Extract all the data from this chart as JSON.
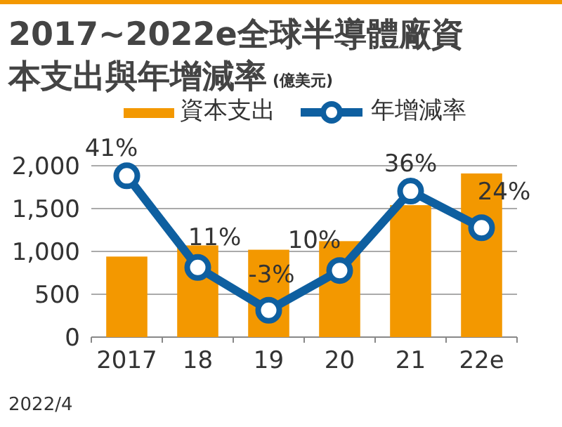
{
  "chart_data": {
    "type": "bar",
    "title": "2017~2022e全球半導體廠資本支出與年增減率",
    "subtitle": "(億美元)",
    "categories": [
      "2017",
      "18",
      "19",
      "20",
      "21",
      "22e"
    ],
    "series": [
      {
        "name": "資本支出",
        "color": "#f39800",
        "values": [
          940,
          1070,
          1020,
          1120,
          1540,
          1910
        ]
      },
      {
        "name": "年增減率",
        "type": "line",
        "axis": "y2",
        "color": "#0e5fa0",
        "marker": "circle",
        "values": [
          41,
          11,
          -3,
          10,
          36,
          24
        ],
        "value_labels": [
          "41%",
          "11%",
          "-3%",
          "10%",
          "36%",
          "24%"
        ]
      }
    ],
    "ylim": [
      0,
      2000
    ],
    "yticks": [
      {
        "value": 0,
        "label": "0"
      },
      {
        "value": 500,
        "label": "500"
      },
      {
        "value": 1000,
        "label": "1,000"
      },
      {
        "value": 1500,
        "label": "1,500"
      },
      {
        "value": 2000,
        "label": "2,000"
      }
    ],
    "grid": "y",
    "legend": "top",
    "annotations": [
      "2022/4"
    ]
  }
}
